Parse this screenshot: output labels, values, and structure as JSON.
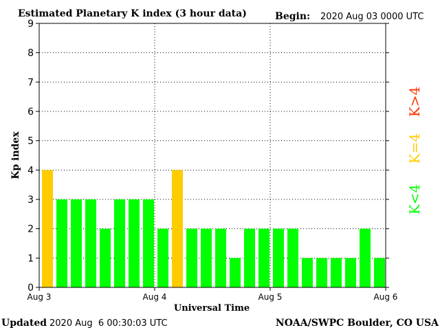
{
  "header": {
    "title": "Estimated Planetary K index (3 hour data)",
    "begin_label": "Begin:",
    "begin_value": "2020 Aug 03 0000 UTC"
  },
  "footer": {
    "updated_label": "Updated",
    "updated_value": "2020 Aug  6 00:30:03 UTC",
    "source": "NOAA/SWPC Boulder, CO USA"
  },
  "legend": {
    "lt4": {
      "label": "K<4",
      "color": "#00ff00"
    },
    "eq4": {
      "label": "K=4",
      "color": "#ffcc00"
    },
    "gt4": {
      "label": "K>4",
      "color": "#ff3300"
    }
  },
  "chart_data": {
    "type": "bar",
    "title": "Estimated Planetary K index (3 hour data)",
    "xlabel": "Universal Time",
    "ylabel": "Kp index",
    "ylim": [
      0,
      9
    ],
    "yticks": [
      "0",
      "1",
      "2",
      "3",
      "4",
      "5",
      "6",
      "7",
      "8",
      "9"
    ],
    "xticks": [
      "Aug 3",
      "Aug 4",
      "Aug 5",
      "Aug 6"
    ],
    "interval_hours": 3,
    "grid": true,
    "values": [
      4,
      3,
      3,
      3,
      2,
      3,
      3,
      3,
      2,
      4,
      2,
      2,
      2,
      1,
      2,
      2,
      2,
      2,
      1,
      1,
      1,
      1,
      2,
      1
    ],
    "colors": {
      "lt4": "#00ff00",
      "eq4": "#ffcc00",
      "gt4": "#ff3300"
    }
  }
}
